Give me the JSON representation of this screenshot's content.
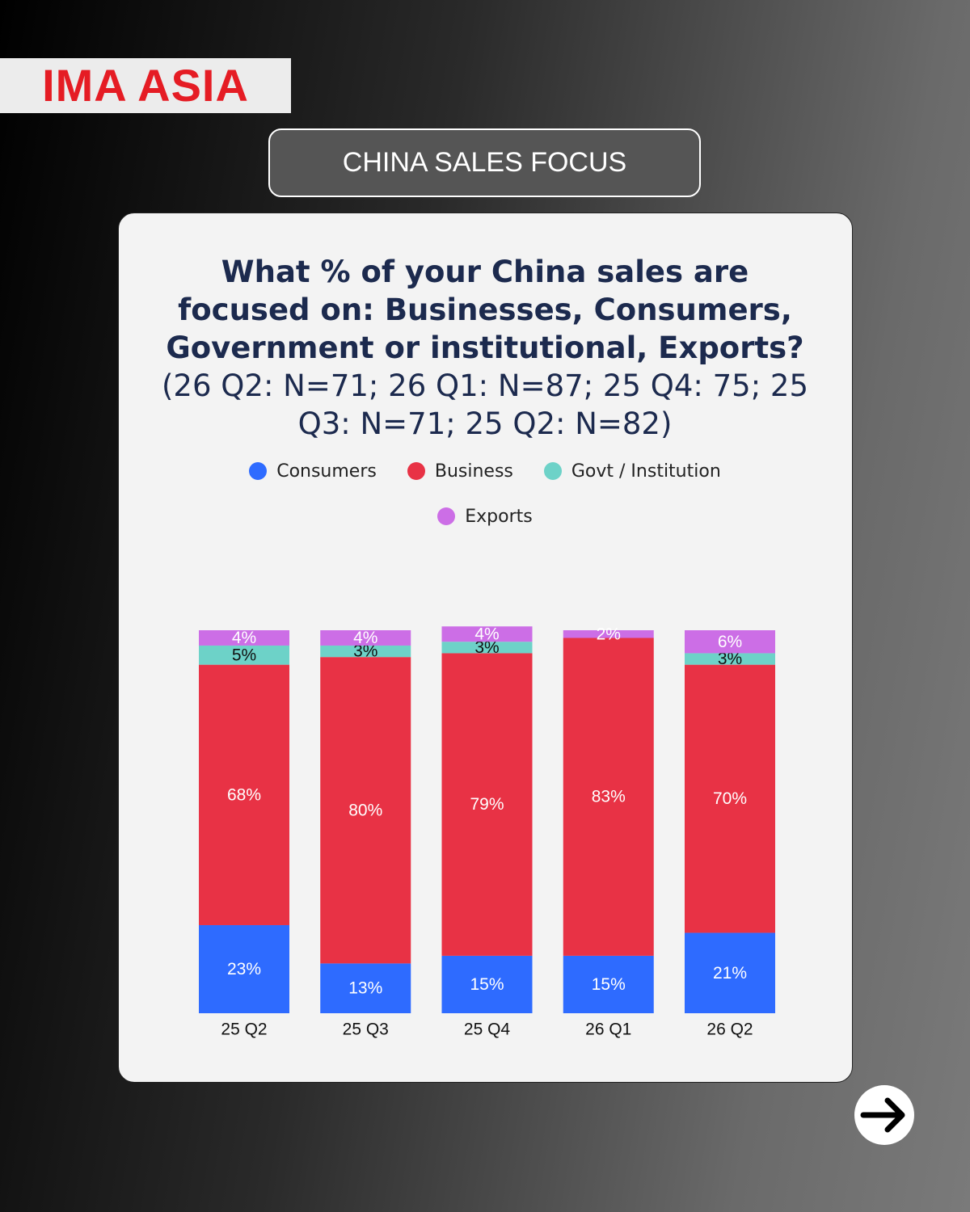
{
  "logo": "IMA ASIA",
  "header": {
    "title": "CHINA SALES FOCUS"
  },
  "chart_data": {
    "type": "stacked-bar",
    "title": "What % of your China sales are focused on: Businesses, Consumers, Government or institutional, Exports?",
    "subtitle": "(26 Q2: N=71; 26 Q1: N=87; 25 Q4: 75; 25 Q3: N=71; 25 Q2: N=82)",
    "categories": [
      "25 Q2",
      "25 Q3",
      "25 Q4",
      "26 Q1",
      "26 Q2"
    ],
    "series": [
      {
        "name": "Consumers",
        "color": "#2e6bff",
        "values": [
          23,
          13,
          15,
          15,
          21
        ],
        "value_labels": [
          "23%",
          "13%",
          "15%",
          "15%",
          "21%"
        ]
      },
      {
        "name": "Business",
        "color": "#e83245",
        "values": [
          68,
          80,
          79,
          83,
          70
        ],
        "value_labels": [
          "68%",
          "80%",
          "79%",
          "83%",
          "70%"
        ]
      },
      {
        "name": "Govt / Institution",
        "color": "#6dd2c8",
        "values": [
          5,
          3,
          3,
          null,
          3
        ],
        "value_labels": [
          "5%",
          "3%",
          "3%",
          null,
          "3%"
        ]
      },
      {
        "name": "Exports",
        "color": "#cc6ee6",
        "values": [
          4,
          4,
          4,
          2,
          6
        ],
        "value_labels": [
          "4%",
          "4%",
          "4%",
          "2%",
          "6%"
        ]
      }
    ]
  }
}
